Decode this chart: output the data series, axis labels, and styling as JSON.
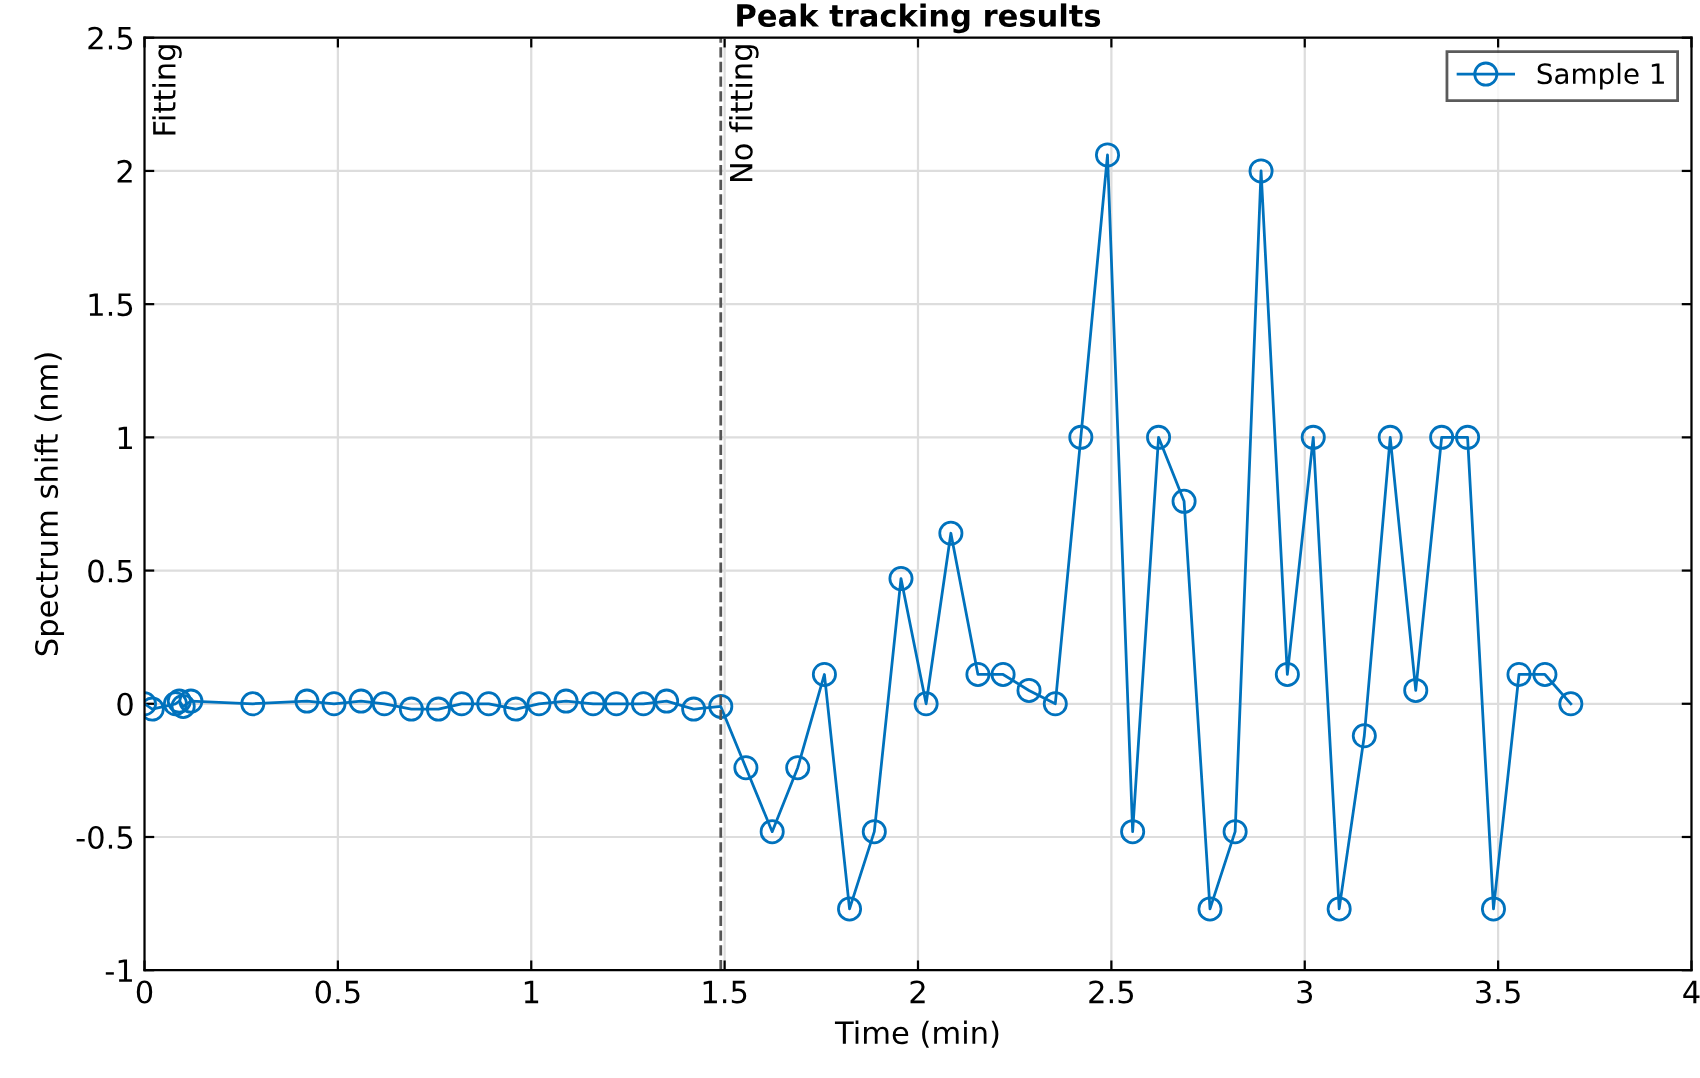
{
  "chart_data": {
    "type": "line",
    "title": "Peak tracking results",
    "xlabel": "Time (min)",
    "ylabel": "Spectrum shift (nm)",
    "series": [
      {
        "name": "Sample 1",
        "color": "#0072bd",
        "x": [
          0,
          0.02,
          0.08,
          0.09,
          0.1,
          0.12,
          0.28,
          0.42,
          0.49,
          0.56,
          0.62,
          0.69,
          0.76,
          0.82,
          0.89,
          0.96,
          1.02,
          1.09,
          1.16,
          1.22,
          1.29,
          1.35,
          1.42,
          1.49,
          1.555,
          1.623,
          1.689,
          1.758,
          1.823,
          1.887,
          1.956,
          2.021,
          2.085,
          2.155,
          2.22,
          2.287,
          2.355,
          2.421,
          2.49,
          2.555,
          2.622,
          2.688,
          2.755,
          2.82,
          2.887,
          2.955,
          3.022,
          3.089,
          3.154,
          3.221,
          3.287,
          3.354,
          3.421,
          3.488,
          3.554,
          3.621,
          3.688
        ],
        "values": [
          0,
          -0.02,
          0,
          0.01,
          -0.01,
          0.01,
          0,
          0.01,
          0,
          0.01,
          0,
          -0.02,
          -0.02,
          0,
          0,
          -0.02,
          0,
          0.01,
          0,
          0,
          0,
          0.01,
          -0.02,
          -0.01,
          -0.24,
          -0.48,
          -0.24,
          0.11,
          -0.77,
          -0.48,
          0.47,
          0,
          0.64,
          0.11,
          0.11,
          0.05,
          0,
          1,
          2.06,
          -0.48,
          1,
          0.76,
          -0.77,
          -0.48,
          2,
          0.11,
          1,
          -0.77,
          -0.12,
          1,
          0.05,
          1,
          1,
          -0.77,
          0.11,
          0.11,
          0
        ]
      }
    ],
    "xlim": [
      0,
      4
    ],
    "xticks": [
      0,
      0.5,
      1,
      1.5,
      2,
      2.5,
      3,
      3.5,
      4
    ],
    "ylim": [
      -1,
      2.5
    ],
    "yticks": [
      -1,
      -0.5,
      0,
      0.5,
      1,
      1.5,
      2,
      2.5
    ],
    "ref_lines": [
      {
        "axis": "x",
        "value": 1.49,
        "color": "#555555",
        "line_style": "dashed"
      }
    ],
    "annotations": [
      "Fitting",
      "No fitting"
    ],
    "grid": true,
    "legend": "top right",
    "marker": "circle",
    "line_style": "solid"
  }
}
